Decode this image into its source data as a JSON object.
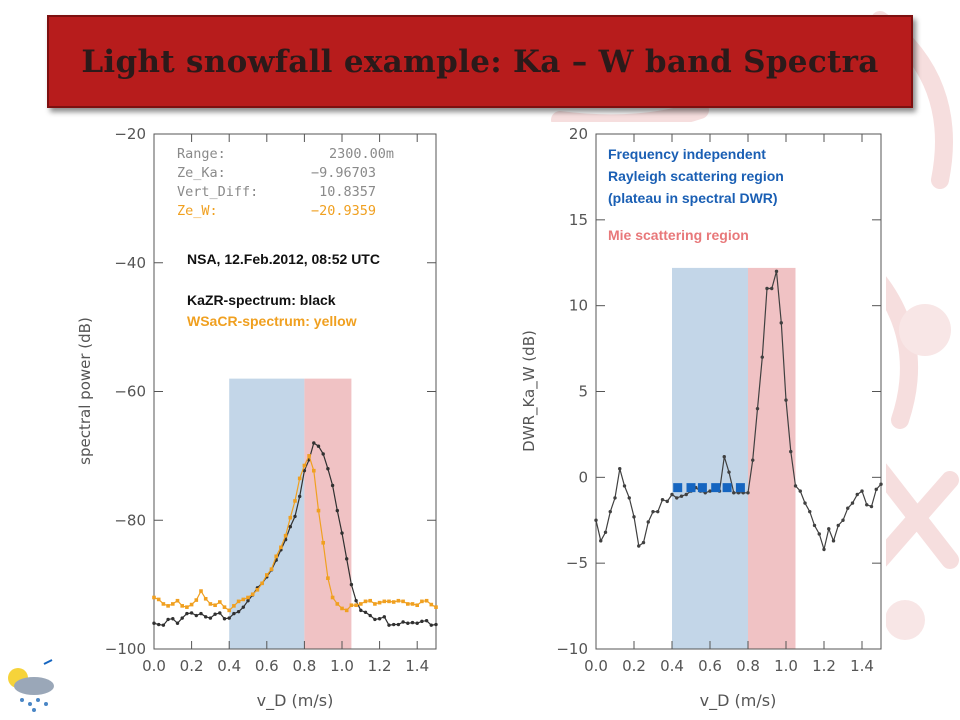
{
  "slide": {
    "title": "Light snowfall example: Ka – W band Spectra"
  },
  "left_panel": {
    "info": {
      "range_label": "Range:",
      "range_value": "2300.00m",
      "zeka_label": "Ze_Ka:",
      "zeka_value": "−9.96703",
      "vert_label": "Vert_Diff:",
      "vert_value": "10.8357",
      "zew_label": "Ze_W:",
      "zew_value": "−20.9359"
    },
    "annotation_date": "NSA, 12.Feb.2012, 08:52 UTC",
    "annotation_ka": "KaZR-spectrum: black",
    "annotation_w": "WSaCR-spectrum: yellow"
  },
  "right_panel": {
    "annotation_rayleigh": [
      "Frequency independent",
      "Rayleigh scattering region",
      "(plateau in spectral DWR)"
    ],
    "annotation_mie": "Mie scattering region"
  },
  "colors": {
    "banner": "#b71c1c",
    "blue_region": "#c3d6e8",
    "pink_region": "#f0c2c4",
    "ka_line": "#303030",
    "w_line": "#f0a020",
    "info_text": "#8a8a8a",
    "rayleigh_text": "#1a5fb4",
    "mie_text": "#e8787a",
    "plateau_marker": "#1565c0"
  },
  "chart_data": [
    {
      "type": "line",
      "xlabel": "v_D (m/s)",
      "ylabel": "spectral power (dB)",
      "xlim": [
        0.0,
        1.5
      ],
      "ylim": [
        -100,
        -20
      ],
      "xticks": [
        "0.0",
        "0.2",
        "0.4",
        "0.6",
        "0.8",
        "1.0",
        "1.2",
        "1.4"
      ],
      "yticks": [
        "−100",
        "−80",
        "−60",
        "−40",
        "−20"
      ],
      "shaded_regions": [
        {
          "x": [
            0.4,
            0.8
          ],
          "y": [
            -100,
            -58
          ],
          "color": "#c3d6e8"
        },
        {
          "x": [
            0.8,
            1.05
          ],
          "y": [
            -100,
            -58
          ],
          "color": "#f0c2c4"
        }
      ],
      "series": [
        {
          "name": "KaZR-spectrum: black",
          "color": "#303030",
          "x": [
            0.0,
            0.025,
            0.05,
            0.075,
            0.1,
            0.125,
            0.15,
            0.175,
            0.2,
            0.225,
            0.25,
            0.275,
            0.3,
            0.325,
            0.35,
            0.375,
            0.4,
            0.425,
            0.45,
            0.475,
            0.5,
            0.525,
            0.55,
            0.575,
            0.6,
            0.625,
            0.65,
            0.675,
            0.7,
            0.725,
            0.75,
            0.775,
            0.8,
            0.825,
            0.85,
            0.875,
            0.9,
            0.925,
            0.95,
            0.975,
            1.0,
            1.025,
            1.05,
            1.075,
            1.1,
            1.125,
            1.15,
            1.175,
            1.2,
            1.225,
            1.25,
            1.275,
            1.3,
            1.325,
            1.35,
            1.375,
            1.4,
            1.425,
            1.45,
            1.475,
            1.5
          ],
          "y": [
            -96.0,
            -96.2,
            -96.3,
            -95.4,
            -95.3,
            -96.0,
            -95.2,
            -94.5,
            -94.4,
            -94.8,
            -94.5,
            -95.0,
            -95.2,
            -94.6,
            -94.4,
            -95.3,
            -95.2,
            -94.5,
            -94.2,
            -93.5,
            -92.5,
            -91.6,
            -90.5,
            -89.8,
            -88.8,
            -87.7,
            -86.2,
            -84.6,
            -83.0,
            -81.0,
            -79.4,
            -76.3,
            -72.3,
            -70.6,
            -68.0,
            -68.5,
            -69.7,
            -72.0,
            -74.6,
            -78.5,
            -82.0,
            -86.0,
            -90.0,
            -92.5,
            -94.0,
            -94.3,
            -94.8,
            -95.4,
            -95.3,
            -95.0,
            -96.3,
            -96.2,
            -96.2,
            -95.8,
            -96.0,
            -95.9,
            -96.0,
            -95.7,
            -95.6,
            -96.3,
            -96.2
          ]
        },
        {
          "name": "WSaCR-spectrum: yellow",
          "color": "#f0a020",
          "x": [
            0.0,
            0.025,
            0.05,
            0.075,
            0.1,
            0.125,
            0.15,
            0.175,
            0.2,
            0.225,
            0.25,
            0.275,
            0.3,
            0.325,
            0.35,
            0.375,
            0.4,
            0.425,
            0.45,
            0.475,
            0.5,
            0.525,
            0.55,
            0.575,
            0.6,
            0.625,
            0.65,
            0.675,
            0.7,
            0.725,
            0.75,
            0.775,
            0.8,
            0.825,
            0.85,
            0.875,
            0.9,
            0.925,
            0.95,
            0.975,
            1.0,
            1.025,
            1.05,
            1.075,
            1.1,
            1.125,
            1.15,
            1.175,
            1.2,
            1.225,
            1.25,
            1.275,
            1.3,
            1.325,
            1.35,
            1.375,
            1.4,
            1.425,
            1.45,
            1.475,
            1.5
          ],
          "y": [
            -92.0,
            -92.3,
            -93.0,
            -93.3,
            -93.0,
            -92.5,
            -93.3,
            -93.5,
            -93.1,
            -92.4,
            -91.0,
            -92.2,
            -93.0,
            -93.2,
            -92.7,
            -93.5,
            -94.0,
            -93.3,
            -92.6,
            -92.3,
            -92.0,
            -91.5,
            -90.8,
            -89.8,
            -88.5,
            -87.6,
            -85.6,
            -84.2,
            -82.4,
            -79.6,
            -77.0,
            -73.5,
            -71.5,
            -70.0,
            -72.3,
            -78.5,
            -83.5,
            -89.0,
            -92.0,
            -93.0,
            -93.7,
            -94.0,
            -93.2,
            -93.2,
            -93.0,
            -92.6,
            -92.5,
            -93.0,
            -92.8,
            -92.6,
            -92.6,
            -92.7,
            -92.5,
            -92.6,
            -93.0,
            -93.0,
            -93.2,
            -92.6,
            -92.5,
            -93.1,
            -93.5
          ]
        }
      ]
    },
    {
      "type": "line",
      "xlabel": "v_D (m/s)",
      "ylabel": "DWR_Ka_W (dB)",
      "xlim": [
        0.0,
        1.5
      ],
      "ylim": [
        -10,
        20
      ],
      "xticks": [
        "0.0",
        "0.2",
        "0.4",
        "0.6",
        "0.8",
        "1.0",
        "1.2",
        "1.4"
      ],
      "yticks": [
        "−10",
        "−5",
        "0",
        "5",
        "10",
        "15",
        "20"
      ],
      "shaded_regions": [
        {
          "x": [
            0.4,
            0.8
          ],
          "y": [
            -10,
            12.2
          ],
          "color": "#c3d6e8"
        },
        {
          "x": [
            0.8,
            1.05
          ],
          "y": [
            -10,
            12.2
          ],
          "color": "#f0c2c4"
        }
      ],
      "series": [
        {
          "name": "DWR_Ka_W",
          "color": "#404040",
          "x": [
            0.0,
            0.025,
            0.05,
            0.075,
            0.1,
            0.125,
            0.15,
            0.175,
            0.2,
            0.225,
            0.25,
            0.275,
            0.3,
            0.325,
            0.35,
            0.375,
            0.4,
            0.425,
            0.45,
            0.475,
            0.5,
            0.525,
            0.55,
            0.575,
            0.6,
            0.625,
            0.65,
            0.675,
            0.7,
            0.725,
            0.75,
            0.775,
            0.8,
            0.825,
            0.85,
            0.875,
            0.9,
            0.925,
            0.95,
            0.975,
            1.0,
            1.025,
            1.05,
            1.075,
            1.1,
            1.125,
            1.15,
            1.175,
            1.2,
            1.225,
            1.25,
            1.275,
            1.3,
            1.325,
            1.35,
            1.375,
            1.4,
            1.425,
            1.45,
            1.475,
            1.5
          ],
          "y": [
            -2.5,
            -3.7,
            -3.2,
            -2.0,
            -1.2,
            0.5,
            -0.5,
            -1.2,
            -2.3,
            -4.0,
            -3.8,
            -2.6,
            -2.0,
            -2.0,
            -1.3,
            -1.4,
            -1.0,
            -1.2,
            -1.1,
            -1.0,
            -0.8,
            -0.6,
            -0.8,
            -0.9,
            -0.8,
            -0.7,
            -0.8,
            1.2,
            0.3,
            -0.9,
            -0.9,
            -0.9,
            -0.9,
            1.0,
            4.0,
            7.0,
            11.0,
            11.0,
            12.0,
            9.0,
            4.5,
            1.5,
            -0.5,
            -0.8,
            -1.5,
            -2.0,
            -2.8,
            -3.3,
            -4.2,
            -3.0,
            -3.7,
            -2.8,
            -2.5,
            -1.8,
            -1.5,
            -1.0,
            -0.8,
            -1.6,
            -1.7,
            -0.7,
            -0.4
          ]
        },
        {
          "name": "plateau markers",
          "color": "#1565c0",
          "x": [
            0.43,
            0.5,
            0.56,
            0.63,
            0.69,
            0.76
          ],
          "y": [
            -0.6,
            -0.6,
            -0.6,
            -0.6,
            -0.6,
            -0.6
          ]
        }
      ]
    }
  ]
}
